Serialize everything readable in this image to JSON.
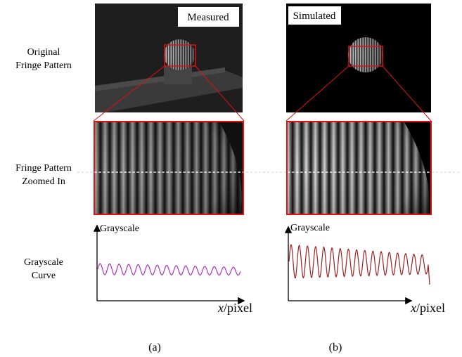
{
  "row_labels": [
    {
      "lines": [
        "Original",
        "Fringe Pattern"
      ]
    },
    {
      "lines": [
        "Fringe Pattern",
        "Zoomed In"
      ]
    },
    {
      "lines": [
        "Grayscale",
        "Curve"
      ]
    }
  ],
  "panels": [
    {
      "tag": "Measured",
      "y_axis_label": "Grayscale",
      "x_axis_label": {
        "symbol": "x",
        "unit": "/pixel"
      },
      "caption": "(a)"
    },
    {
      "tag": "Simulated",
      "y_axis_label": "Grayscale",
      "x_axis_label": {
        "symbol": "x",
        "unit": "/pixel"
      },
      "caption": "(b)"
    }
  ]
}
